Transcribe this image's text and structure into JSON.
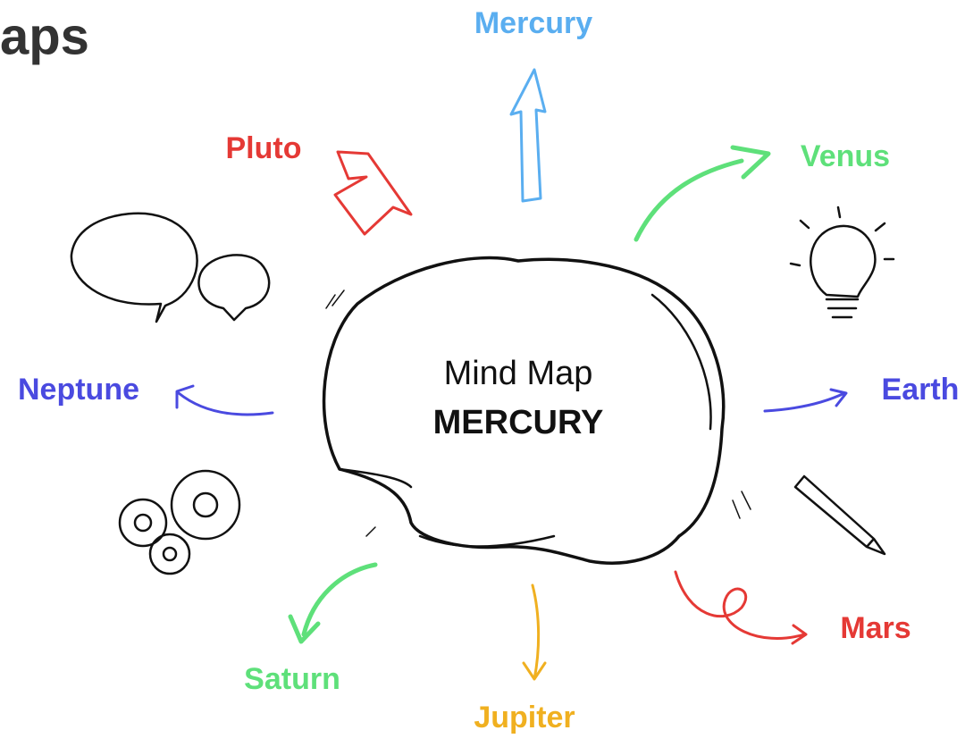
{
  "title": "aps",
  "center": {
    "line1": "Mind Map",
    "line2": "MERCURY"
  },
  "nodes": [
    {
      "label": "Mercury"
    },
    {
      "label": "Pluto"
    },
    {
      "label": "Venus"
    },
    {
      "label": "Neptune"
    },
    {
      "label": "Earth"
    },
    {
      "label": "Mars"
    },
    {
      "label": "Jupiter"
    },
    {
      "label": "Saturn"
    }
  ]
}
